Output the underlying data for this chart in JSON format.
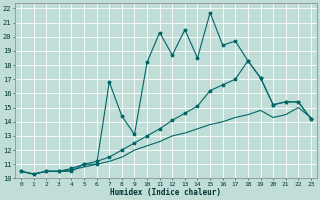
{
  "xlabel": "Humidex (Indice chaleur)",
  "bg_color": "#c0ddd8",
  "grid_color": "#a8ccc8",
  "line_color": "#006666",
  "xlim": [
    -0.5,
    23.5
  ],
  "ylim": [
    10,
    22.4
  ],
  "xticks": [
    0,
    1,
    2,
    3,
    4,
    5,
    6,
    7,
    8,
    9,
    10,
    11,
    12,
    13,
    14,
    15,
    16,
    17,
    18,
    19,
    20,
    21,
    22,
    23
  ],
  "yticks": [
    10,
    11,
    12,
    13,
    14,
    15,
    16,
    17,
    18,
    19,
    20,
    21,
    22
  ],
  "line1_x": [
    0,
    1,
    2,
    3,
    4,
    5,
    6,
    7,
    8,
    9,
    10,
    11,
    12,
    13,
    14,
    15,
    16,
    17,
    18,
    19,
    20,
    21,
    22,
    23
  ],
  "line1_y": [
    10.5,
    10.3,
    10.5,
    10.5,
    10.5,
    11.0,
    11.0,
    16.8,
    14.4,
    13.1,
    18.2,
    20.3,
    18.7,
    20.5,
    18.5,
    21.7,
    19.4,
    19.7,
    18.3,
    17.1,
    15.2,
    15.4,
    15.4,
    14.2
  ],
  "line2_x": [
    0,
    1,
    2,
    3,
    4,
    5,
    6,
    7,
    8,
    9,
    10,
    11,
    12,
    13,
    14,
    15,
    16,
    17,
    18,
    19,
    20,
    21,
    22,
    23
  ],
  "line2_y": [
    10.5,
    10.3,
    10.5,
    10.5,
    10.7,
    11.0,
    11.2,
    11.5,
    12.0,
    12.5,
    13.0,
    13.5,
    14.1,
    14.6,
    15.1,
    16.2,
    16.6,
    17.0,
    18.3,
    17.1,
    15.2,
    15.4,
    15.4,
    14.2
  ],
  "line3_x": [
    0,
    1,
    2,
    3,
    4,
    5,
    6,
    7,
    8,
    9,
    10,
    11,
    12,
    13,
    14,
    15,
    16,
    17,
    18,
    19,
    20,
    21,
    22,
    23
  ],
  "line3_y": [
    10.5,
    10.3,
    10.5,
    10.5,
    10.6,
    10.8,
    11.0,
    11.2,
    11.5,
    12.0,
    12.3,
    12.6,
    13.0,
    13.2,
    13.5,
    13.8,
    14.0,
    14.3,
    14.5,
    14.8,
    14.3,
    14.5,
    15.0,
    14.3
  ]
}
